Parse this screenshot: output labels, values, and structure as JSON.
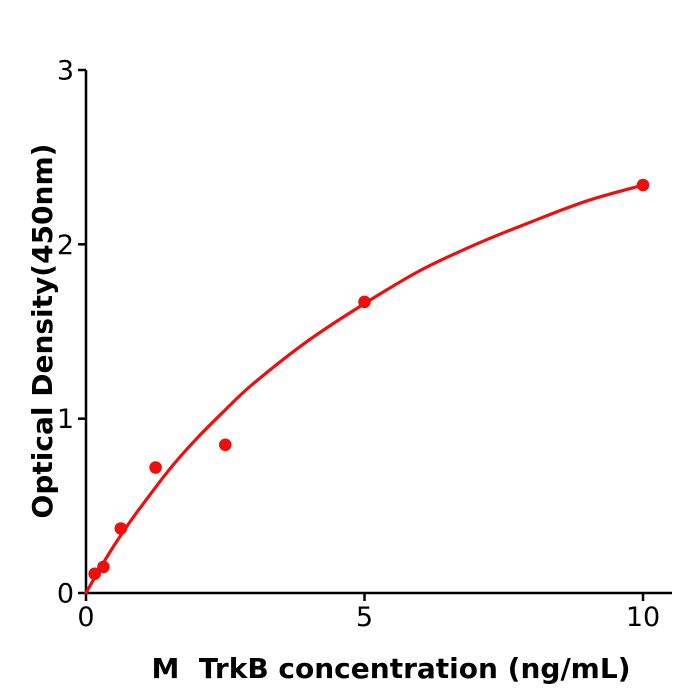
{
  "figure": {
    "background": "#ffffff",
    "axis_color": "#000000",
    "accent_red": "#ee0e0e"
  },
  "chart_data": {
    "type": "scatter",
    "title": "",
    "xlabel": "M  TrkB concentration (ng/mL)",
    "ylabel": "Optical Density(450nm)",
    "xlim": [
      0,
      10.52
    ],
    "ylim": [
      0,
      3
    ],
    "x_ticks": [
      0,
      5,
      10
    ],
    "y_ticks": [
      0,
      1,
      2,
      3
    ],
    "grid": false,
    "legend": null,
    "series": [
      {
        "name": "standard-points",
        "type": "scatter",
        "color": "#ee0e0e",
        "marker": "circle",
        "x": [
          0.156,
          0.313,
          0.625,
          1.25,
          2.5,
          5,
          10
        ],
        "y": [
          0.11,
          0.15,
          0.37,
          0.72,
          0.85,
          1.67,
          2.34
        ]
      },
      {
        "name": "fit-curve",
        "type": "line",
        "color": "#ee0e0e",
        "x": [
          0,
          0.25,
          0.5,
          0.75,
          1,
          1.5,
          2,
          2.5,
          3,
          4,
          5,
          6,
          7,
          8,
          9,
          10
        ],
        "y": [
          0,
          0.14,
          0.27,
          0.39,
          0.5,
          0.71,
          0.89,
          1.05,
          1.2,
          1.45,
          1.66,
          1.85,
          2.0,
          2.13,
          2.25,
          2.34
        ]
      }
    ]
  }
}
